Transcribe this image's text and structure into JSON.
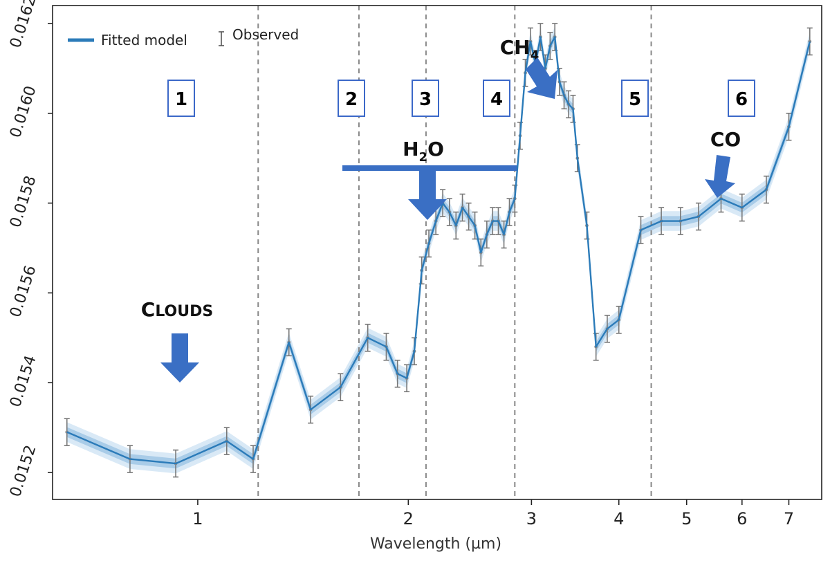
{
  "chart_data": {
    "type": "line",
    "xscale": "log",
    "xlim": [
      0.62,
      7.8
    ],
    "ylim": [
      0.01514,
      0.01624
    ],
    "xlabel": "Wavelength (µm)",
    "ylabel": "",
    "x_ticks": [
      {
        "value": 1,
        "label": "1"
      },
      {
        "value": 2,
        "label": "2"
      },
      {
        "value": 3,
        "label": "3"
      },
      {
        "value": 4,
        "label": "4"
      },
      {
        "value": 5,
        "label": "5"
      },
      {
        "value": 6,
        "label": "6"
      },
      {
        "value": 7,
        "label": "7"
      }
    ],
    "y_ticks": [
      {
        "value": 0.0152,
        "label": "0.0152"
      },
      {
        "value": 0.0154,
        "label": "0.0154"
      },
      {
        "value": 0.0156,
        "label": "0.0156"
      },
      {
        "value": 0.0158,
        "label": "0.0158"
      },
      {
        "value": 0.016,
        "label": "0.0160"
      },
      {
        "value": 0.0162,
        "label": "0.0162"
      }
    ],
    "legend": {
      "placement": "top-left",
      "entries": [
        {
          "label": "Fitted model",
          "kind": "line"
        },
        {
          "label": "Observed",
          "kind": "errorbar"
        }
      ]
    },
    "colors": {
      "model": "#2b7bb9",
      "band_inner": "#a9cce8",
      "band_outer": "#d9e9f6",
      "errorbar": "#777777",
      "arrow": "#3a6fc4"
    },
    "series": [
      {
        "name": "Fitted model",
        "x": [
          0.65,
          0.8,
          0.93,
          1.1,
          1.2,
          1.35,
          1.45,
          1.6,
          1.75,
          1.86,
          1.93,
          1.99,
          2.04,
          2.09,
          2.14,
          2.19,
          2.24,
          2.29,
          2.34,
          2.39,
          2.44,
          2.49,
          2.54,
          2.59,
          2.64,
          2.69,
          2.74,
          2.79,
          2.84,
          2.89,
          2.94,
          2.99,
          3.04,
          3.09,
          3.14,
          3.19,
          3.24,
          3.29,
          3.34,
          3.39,
          3.44,
          3.49,
          3.6,
          3.71,
          3.85,
          4.0,
          4.3,
          4.6,
          4.9,
          5.2,
          5.6,
          6.0,
          6.5,
          7.0,
          7.5
        ],
        "values": [
          0.01529,
          0.01523,
          0.01522,
          0.01527,
          0.01523,
          0.01549,
          0.01534,
          0.01539,
          0.0155,
          0.01548,
          0.01542,
          0.01541,
          0.01547,
          0.01565,
          0.01571,
          0.01576,
          0.0158,
          0.01578,
          0.01575,
          0.01579,
          0.01577,
          0.01575,
          0.01569,
          0.01573,
          0.01576,
          0.01576,
          0.01573,
          0.01578,
          0.01581,
          0.01595,
          0.01609,
          0.01616,
          0.01611,
          0.01617,
          0.0161,
          0.01615,
          0.01617,
          0.01607,
          0.01604,
          0.01602,
          0.01601,
          0.0159,
          0.01575,
          0.01548,
          0.01552,
          0.01554,
          0.01574,
          0.01576,
          0.01576,
          0.01577,
          0.01581,
          0.01579,
          0.01583,
          0.01597,
          0.01616
        ]
      },
      {
        "name": "Observed",
        "x": [
          0.65,
          0.8,
          0.93,
          1.1,
          1.2,
          1.35,
          1.45,
          1.6,
          1.75,
          1.86,
          1.93,
          1.99,
          2.04,
          2.09,
          2.14,
          2.19,
          2.24,
          2.29,
          2.34,
          2.39,
          2.44,
          2.49,
          2.54,
          2.59,
          2.64,
          2.69,
          2.74,
          2.79,
          2.84,
          2.89,
          2.94,
          2.99,
          3.04,
          3.09,
          3.14,
          3.19,
          3.24,
          3.29,
          3.34,
          3.39,
          3.44,
          3.49,
          3.6,
          3.71,
          3.85,
          4.0,
          4.3,
          4.6,
          4.9,
          5.2,
          5.6,
          6.0,
          6.5,
          7.0,
          7.5
        ],
        "values": [
          0.01529,
          0.01523,
          0.01522,
          0.01527,
          0.01523,
          0.01549,
          0.01534,
          0.01539,
          0.0155,
          0.01548,
          0.01542,
          0.01541,
          0.01547,
          0.01565,
          0.01571,
          0.01576,
          0.0158,
          0.01578,
          0.01575,
          0.01579,
          0.01577,
          0.01575,
          0.01569,
          0.01573,
          0.01576,
          0.01576,
          0.01573,
          0.01578,
          0.01581,
          0.01595,
          0.01609,
          0.01616,
          0.01611,
          0.01617,
          0.0161,
          0.01615,
          0.01617,
          0.01607,
          0.01604,
          0.01602,
          0.01601,
          0.0159,
          0.01575,
          0.01548,
          0.01552,
          0.01554,
          0.01574,
          0.01576,
          0.01576,
          0.01577,
          0.01581,
          0.01579,
          0.01583,
          0.01597,
          0.01616
        ],
        "error": 3e-05
      }
    ],
    "region_boundaries_x": [
      1.22,
      1.7,
      2.12,
      2.84,
      4.45
    ],
    "regions": [
      {
        "label": "1"
      },
      {
        "label": "2"
      },
      {
        "label": "3"
      },
      {
        "label": "4"
      },
      {
        "label": "5"
      },
      {
        "label": "6"
      }
    ],
    "annotations": {
      "clouds": {
        "text": "Clouds"
      },
      "h2o": {
        "main": "H",
        "sub": "2",
        "tail": "O"
      },
      "ch4": {
        "main": "CH",
        "sub": "4"
      },
      "co": {
        "text": "CO"
      }
    }
  }
}
